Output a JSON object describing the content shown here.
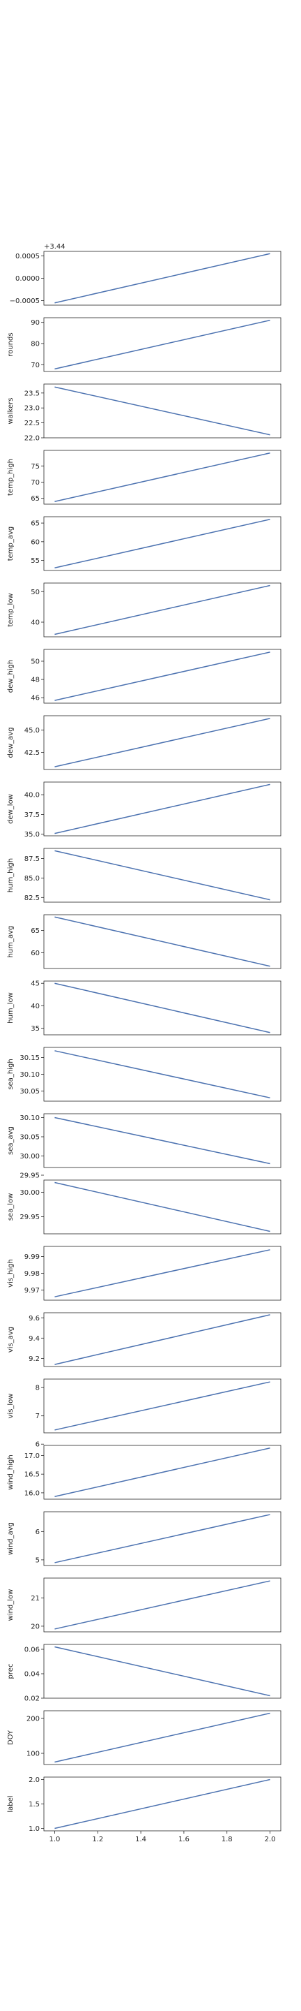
{
  "chart_data": [
    {
      "type": "line",
      "ylabel": null,
      "offset_text": "+3.44",
      "x": [
        1,
        2
      ],
      "series": [
        {
          "color": "#4c72b0",
          "values": [
            -0.00055,
            0.00055
          ]
        }
      ],
      "ylim": [
        -0.0006,
        0.0006
      ],
      "yticks": [
        {
          "value": -0.0005,
          "label": "−0.0005"
        },
        {
          "value": 0,
          "label": "0.0000"
        },
        {
          "value": 0.0005,
          "label": "0.0005"
        }
      ],
      "xlim": [
        0.95,
        2.05
      ]
    },
    {
      "type": "line",
      "ylabel": "rounds",
      "x": [
        1,
        2
      ],
      "series": [
        {
          "color": "#4c72b0",
          "values": [
            68,
            91
          ]
        }
      ],
      "ylim": [
        66.8,
        92.2
      ],
      "yticks": [
        70,
        80,
        90
      ],
      "xlim": [
        0.95,
        2.05
      ]
    },
    {
      "type": "line",
      "ylabel": "walkers",
      "x": [
        1,
        2
      ],
      "series": [
        {
          "color": "#4c72b0",
          "values": [
            23.7,
            22.1
          ]
        }
      ],
      "ylim": [
        22.0,
        23.8
      ],
      "yticks": [
        {
          "value": 22,
          "label": "22.0"
        },
        22.5,
        {
          "value": 23,
          "label": "23.0"
        },
        23.5
      ],
      "xlim": [
        0.95,
        2.05
      ]
    },
    {
      "type": "line",
      "ylabel": "temp_high",
      "x": [
        1,
        2
      ],
      "series": [
        {
          "color": "#4c72b0",
          "values": [
            64,
            79
          ]
        }
      ],
      "ylim": [
        63.2,
        79.8
      ],
      "yticks": [
        65,
        70,
        75
      ],
      "xlim": [
        0.95,
        2.05
      ]
    },
    {
      "type": "line",
      "ylabel": "temp_avg",
      "x": [
        1,
        2
      ],
      "series": [
        {
          "color": "#4c72b0",
          "values": [
            53,
            66
          ]
        }
      ],
      "ylim": [
        52.3,
        66.7
      ],
      "yticks": [
        55,
        60,
        65
      ],
      "xlim": [
        0.95,
        2.05
      ]
    },
    {
      "type": "line",
      "ylabel": "temp_low",
      "x": [
        1,
        2
      ],
      "series": [
        {
          "color": "#4c72b0",
          "values": [
            36,
            52
          ]
        }
      ],
      "ylim": [
        35.2,
        52.8
      ],
      "yticks": [
        40,
        50
      ],
      "xlim": [
        0.95,
        2.05
      ]
    },
    {
      "type": "line",
      "ylabel": "dew_high",
      "x": [
        1,
        2
      ],
      "series": [
        {
          "color": "#4c72b0",
          "values": [
            45.7,
            51
          ]
        }
      ],
      "ylim": [
        45.4,
        51.3
      ],
      "yticks": [
        46,
        48,
        50
      ],
      "xlim": [
        0.95,
        2.05
      ]
    },
    {
      "type": "line",
      "ylabel": "dew_avg",
      "x": [
        1,
        2
      ],
      "series": [
        {
          "color": "#4c72b0",
          "values": [
            40.9,
            46.3
          ]
        }
      ],
      "ylim": [
        40.6,
        46.6
      ],
      "yticks": [
        42.5,
        {
          "value": 45,
          "label": "45.0"
        }
      ],
      "xlim": [
        0.95,
        2.05
      ]
    },
    {
      "type": "line",
      "ylabel": "dew_low",
      "x": [
        1,
        2
      ],
      "series": [
        {
          "color": "#4c72b0",
          "values": [
            35.1,
            41.3
          ]
        }
      ],
      "ylim": [
        34.8,
        41.6
      ],
      "yticks": [
        {
          "value": 35,
          "label": "35.0"
        },
        37.5,
        {
          "value": 40,
          "label": "40.0"
        }
      ],
      "xlim": [
        0.95,
        2.05
      ]
    },
    {
      "type": "line",
      "ylabel": "hum_high",
      "x": [
        1,
        2
      ],
      "series": [
        {
          "color": "#4c72b0",
          "values": [
            88.5,
            82.2
          ]
        }
      ],
      "ylim": [
        81.9,
        88.8
      ],
      "yticks": [
        82.5,
        {
          "value": 85,
          "label": "85.0"
        },
        87.5
      ],
      "xlim": [
        0.95,
        2.05
      ]
    },
    {
      "type": "line",
      "ylabel": "hum_avg",
      "x": [
        1,
        2
      ],
      "series": [
        {
          "color": "#4c72b0",
          "values": [
            68,
            57
          ]
        }
      ],
      "ylim": [
        56.5,
        68.5
      ],
      "yticks": [
        60,
        65
      ],
      "xlim": [
        0.95,
        2.05
      ]
    },
    {
      "type": "line",
      "ylabel": "hum_low",
      "x": [
        1,
        2
      ],
      "series": [
        {
          "color": "#4c72b0",
          "values": [
            45,
            34
          ]
        }
      ],
      "ylim": [
        33.5,
        45.5
      ],
      "yticks": [
        35,
        40,
        45
      ],
      "xlim": [
        0.95,
        2.05
      ]
    },
    {
      "type": "line",
      "ylabel": "sea_high",
      "x": [
        1,
        2
      ],
      "series": [
        {
          "color": "#4c72b0",
          "values": [
            30.17,
            30.03
          ]
        }
      ],
      "ylim": [
        30.02,
        30.18
      ],
      "yticks": [
        30.05,
        {
          "value": 30.1,
          "label": "30.10"
        },
        30.15
      ],
      "xlim": [
        0.95,
        2.05
      ]
    },
    {
      "type": "line",
      "ylabel": "sea_avg",
      "x": [
        1,
        2
      ],
      "series": [
        {
          "color": "#4c72b0",
          "values": [
            30.1,
            29.98
          ]
        }
      ],
      "ylim": [
        29.97,
        30.11
      ],
      "yticks": [
        29.95,
        {
          "value": 30,
          "label": "30.00"
        },
        30.05,
        {
          "value": 30.1,
          "label": "30.10"
        }
      ],
      "xlim": [
        0.95,
        2.05
      ]
    },
    {
      "type": "line",
      "ylabel": "sea_low",
      "x": [
        1,
        2
      ],
      "series": [
        {
          "color": "#4c72b0",
          "values": [
            30.02,
            29.92
          ]
        }
      ],
      "ylim": [
        29.915,
        30.025
      ],
      "yticks": [
        29.95,
        {
          "value": 30,
          "label": "30.00"
        }
      ],
      "xlim": [
        0.95,
        2.05
      ]
    },
    {
      "type": "line",
      "ylabel": "vis_high",
      "x": [
        1,
        2
      ],
      "series": [
        {
          "color": "#4c72b0",
          "values": [
            9.966,
            9.994
          ]
        }
      ],
      "ylim": [
        9.964,
        9.996
      ],
      "yticks": [
        9.97,
        9.98,
        9.99
      ],
      "xlim": [
        0.95,
        2.05
      ]
    },
    {
      "type": "line",
      "ylabel": "vis_avg",
      "x": [
        1,
        2
      ],
      "series": [
        {
          "color": "#4c72b0",
          "values": [
            9.14,
            9.63
          ]
        }
      ],
      "ylim": [
        9.12,
        9.65
      ],
      "yticks": [
        9.2,
        9.4,
        9.6
      ],
      "xlim": [
        0.95,
        2.05
      ]
    },
    {
      "type": "line",
      "ylabel": "vis_low",
      "x": [
        1,
        2
      ],
      "series": [
        {
          "color": "#4c72b0",
          "values": [
            6.5,
            8.2
          ]
        }
      ],
      "ylim": [
        6.4,
        8.3
      ],
      "yticks": [
        6,
        7,
        8
      ],
      "xlim": [
        0.95,
        2.05
      ]
    },
    {
      "type": "line",
      "ylabel": "wind_high",
      "x": [
        1,
        2
      ],
      "series": [
        {
          "color": "#4c72b0",
          "values": [
            15.9,
            17.2
          ]
        }
      ],
      "ylim": [
        15.83,
        17.27
      ],
      "yticks": [
        {
          "value": 16,
          "label": "16.0"
        },
        16.5,
        {
          "value": 17,
          "label": "17.0"
        }
      ],
      "xlim": [
        0.95,
        2.05
      ]
    },
    {
      "type": "line",
      "ylabel": "wind_avg",
      "x": [
        1,
        2
      ],
      "series": [
        {
          "color": "#4c72b0",
          "values": [
            4.9,
            6.6
          ]
        }
      ],
      "ylim": [
        4.8,
        6.7
      ],
      "yticks": [
        5,
        6
      ],
      "xlim": [
        0.95,
        2.05
      ]
    },
    {
      "type": "line",
      "ylabel": "wind_low",
      "x": [
        1,
        2
      ],
      "series": [
        {
          "color": "#4c72b0",
          "values": [
            19.9,
            21.6
          ]
        }
      ],
      "ylim": [
        19.8,
        21.7
      ],
      "yticks": [
        20,
        21
      ],
      "xlim": [
        0.95,
        2.05
      ]
    },
    {
      "type": "line",
      "ylabel": "prec",
      "x": [
        1,
        2
      ],
      "series": [
        {
          "color": "#4c72b0",
          "values": [
            0.062,
            0.022
          ]
        }
      ],
      "ylim": [
        0.02,
        0.064
      ],
      "yticks": [
        0.02,
        0.04,
        0.06
      ],
      "xlim": [
        0.95,
        2.05
      ]
    },
    {
      "type": "line",
      "ylabel": "DOY",
      "x": [
        1,
        2
      ],
      "series": [
        {
          "color": "#4c72b0",
          "values": [
            75,
            215
          ]
        }
      ],
      "ylim": [
        68,
        222
      ],
      "yticks": [
        100,
        200
      ],
      "xlim": [
        0.95,
        2.05
      ]
    },
    {
      "type": "line",
      "ylabel": "label",
      "x": [
        1,
        2
      ],
      "series": [
        {
          "color": "#4c72b0",
          "values": [
            1,
            2
          ]
        }
      ],
      "ylim": [
        0.95,
        2.05
      ],
      "yticks": [
        {
          "value": 1,
          "label": "1.0"
        },
        1.5,
        {
          "value": 2,
          "label": "2.0"
        }
      ],
      "xlim": [
        0.95,
        2.05
      ],
      "xticks": [
        {
          "value": 1,
          "label": "1.0"
        },
        1.2,
        1.4,
        1.6,
        1.8,
        {
          "value": 2,
          "label": "2.0"
        }
      ]
    }
  ]
}
